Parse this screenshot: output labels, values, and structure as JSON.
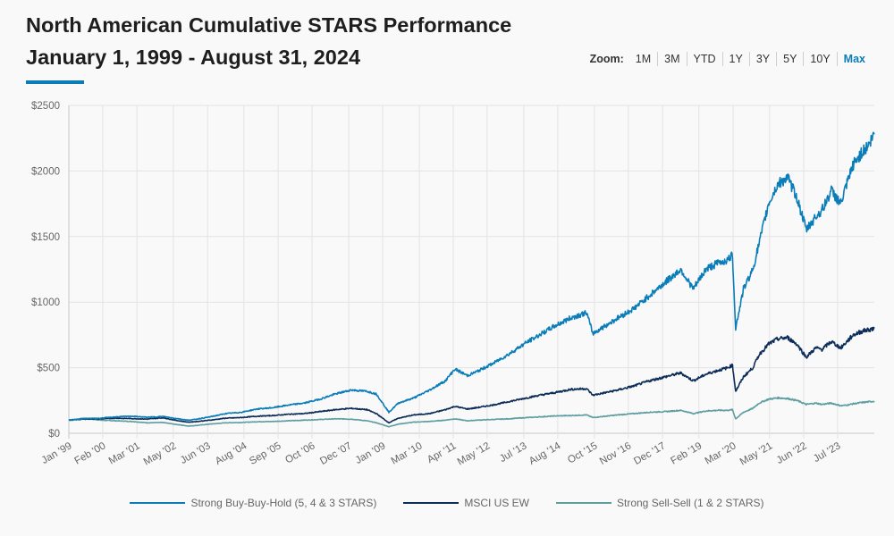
{
  "header": {
    "title_line1": "North American Cumulative STARS Performance",
    "title_line2": "January 1, 1999 - August 31, 2024",
    "accent_color": "#0a7db8"
  },
  "zoom": {
    "label": "Zoom:",
    "options": [
      "1M",
      "3M",
      "YTD",
      "1Y",
      "3Y",
      "5Y",
      "10Y",
      "Max"
    ],
    "active": "Max"
  },
  "chart_data": {
    "type": "line",
    "title": "North American Cumulative STARS Performance",
    "subtitle": "January 1, 1999 - August 31, 2024",
    "xlabel": "",
    "ylabel": "",
    "ylim": [
      0,
      2500
    ],
    "xlim": [
      "1999-01",
      "2024-08"
    ],
    "grid": true,
    "legend_position": "bottom",
    "y_ticks": [
      "$0",
      "$500",
      "$1000",
      "$1500",
      "$2000",
      "$2500"
    ],
    "y_tick_values": [
      0,
      500,
      1000,
      1500,
      2000,
      2500
    ],
    "x_ticks": [
      "Jan '99",
      "Feb '00",
      "Mar '01",
      "May '02",
      "Jun '03",
      "Aug '04",
      "Sep '05",
      "Oct '06",
      "Dec '07",
      "Jan '09",
      "Mar '10",
      "Apr '11",
      "May '12",
      "Jul '13",
      "Aug '14",
      "Oct '15",
      "Nov '16",
      "Dec '17",
      "Feb '19",
      "Mar '20",
      "May '21",
      "Jun '22",
      "Jul '23"
    ],
    "x_tick_years": [
      1999.0,
      2000.08,
      2001.17,
      2002.33,
      2003.42,
      2004.58,
      2005.67,
      2006.75,
      2007.92,
      2009.0,
      2010.17,
      2011.25,
      2012.33,
      2013.5,
      2014.58,
      2015.75,
      2016.83,
      2017.92,
      2019.08,
      2020.17,
      2021.33,
      2022.42,
      2023.5
    ],
    "x": [
      1999.0,
      1999.5,
      2000.0,
      2000.5,
      2001.0,
      2001.5,
      2002.0,
      2002.5,
      2002.8,
      2003.0,
      2003.5,
      2004.0,
      2004.5,
      2005.0,
      2005.5,
      2006.0,
      2006.5,
      2007.0,
      2007.5,
      2008.0,
      2008.5,
      2008.8,
      2009.2,
      2009.5,
      2010.0,
      2010.5,
      2011.0,
      2011.3,
      2011.7,
      2012.0,
      2012.5,
      2013.0,
      2013.5,
      2014.0,
      2014.5,
      2015.0,
      2015.5,
      2015.7,
      2016.1,
      2016.5,
      2017.0,
      2017.5,
      2018.0,
      2018.5,
      2018.9,
      2019.3,
      2019.7,
      2020.0,
      2020.15,
      2020.25,
      2020.5,
      2020.8,
      2021.0,
      2021.3,
      2021.6,
      2021.9,
      2022.2,
      2022.5,
      2022.8,
      2023.0,
      2023.3,
      2023.6,
      2023.8,
      2024.0,
      2024.3,
      2024.5,
      2024.67
    ],
    "series": [
      {
        "name": "Strong Buy-Buy-Hold (5, 4 & 3 STARS)",
        "color": "#0a7db8",
        "values": [
          100,
          112,
          115,
          125,
          130,
          122,
          128,
          110,
          100,
          105,
          125,
          150,
          160,
          185,
          195,
          215,
          230,
          260,
          300,
          330,
          320,
          300,
          160,
          230,
          270,
          330,
          400,
          490,
          440,
          470,
          530,
          600,
          680,
          750,
          820,
          880,
          920,
          760,
          820,
          880,
          950,
          1050,
          1150,
          1250,
          1100,
          1250,
          1300,
          1320,
          1360,
          800,
          1100,
          1250,
          1450,
          1750,
          1900,
          1950,
          1800,
          1550,
          1650,
          1700,
          1850,
          1750,
          1900,
          2050,
          2150,
          2200,
          2280
        ]
      },
      {
        "name": "MSCI US EW",
        "color": "#0c2d57",
        "values": [
          100,
          108,
          110,
          115,
          112,
          108,
          118,
          95,
          85,
          88,
          100,
          115,
          120,
          130,
          135,
          145,
          150,
          165,
          180,
          190,
          180,
          150,
          80,
          115,
          140,
          150,
          180,
          205,
          185,
          195,
          215,
          240,
          265,
          290,
          310,
          335,
          340,
          290,
          310,
          330,
          360,
          400,
          430,
          460,
          400,
          450,
          480,
          500,
          520,
          320,
          430,
          500,
          600,
          680,
          720,
          730,
          680,
          580,
          650,
          640,
          700,
          650,
          700,
          750,
          780,
          790,
          800
        ]
      },
      {
        "name": "Strong Sell-Sell (1 & 2 STARS)",
        "color": "#5f9ea0",
        "values": [
          100,
          115,
          100,
          95,
          90,
          80,
          82,
          65,
          55,
          58,
          70,
          80,
          82,
          88,
          90,
          95,
          100,
          105,
          110,
          108,
          95,
          80,
          50,
          70,
          85,
          90,
          100,
          110,
          95,
          100,
          105,
          110,
          118,
          125,
          132,
          135,
          140,
          120,
          130,
          140,
          150,
          160,
          165,
          175,
          150,
          170,
          175,
          175,
          180,
          110,
          160,
          190,
          230,
          260,
          270,
          265,
          250,
          220,
          230,
          220,
          230,
          210,
          215,
          225,
          235,
          240,
          245
        ]
      }
    ]
  },
  "legend": [
    {
      "label": "Strong Buy-Buy-Hold (5, 4 & 3 STARS)",
      "color": "#0a7db8"
    },
    {
      "label": "MSCI US EW",
      "color": "#0c2d57"
    },
    {
      "label": "Strong Sell-Sell (1 & 2 STARS)",
      "color": "#5f9ea0"
    }
  ]
}
